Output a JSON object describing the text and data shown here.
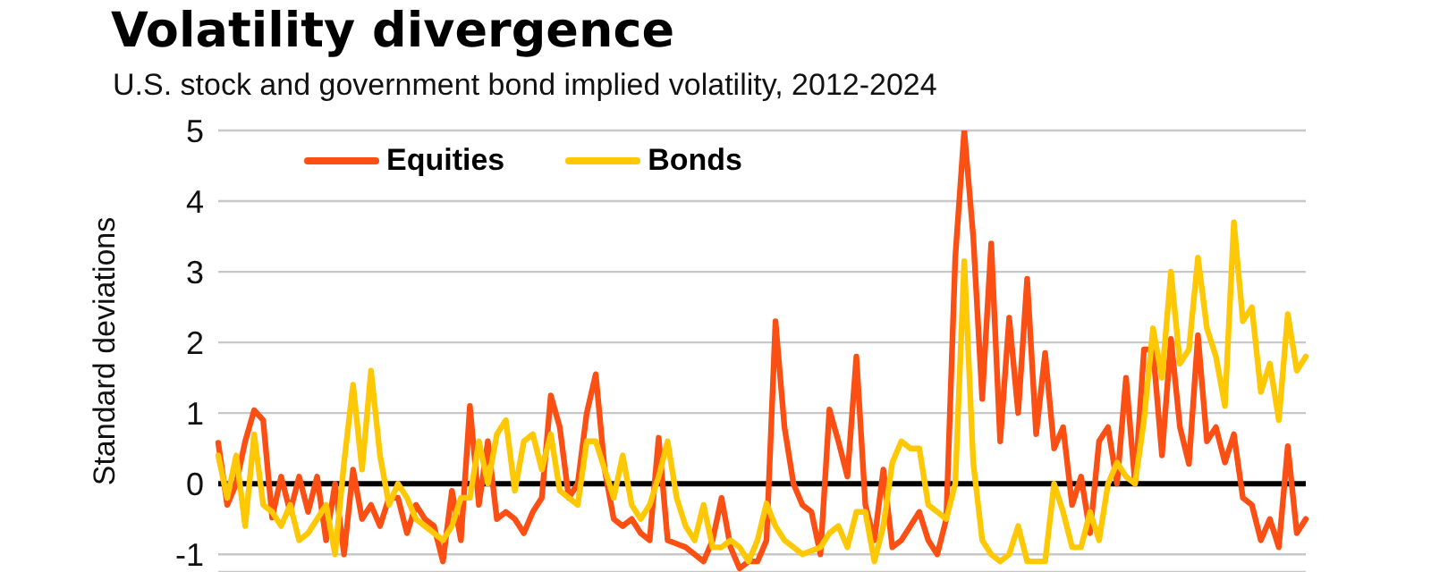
{
  "chart_data": {
    "type": "line",
    "title": "Volatility divergence",
    "subtitle": "U.S. stock and government bond implied volatility, 2012-2024",
    "ylabel": "Standard deviations",
    "categories": [
      null,
      null,
      null,
      null,
      null,
      null,
      null,
      null,
      null,
      null,
      null,
      null,
      null,
      null,
      null,
      null,
      null,
      null,
      null,
      null,
      null,
      null,
      null,
      null,
      null,
      null,
      null,
      null,
      null,
      null,
      null,
      null,
      null,
      null,
      null,
      null,
      null,
      null,
      null,
      null,
      null,
      null,
      null,
      null,
      null,
      null,
      null,
      null,
      null,
      null,
      null,
      null,
      null,
      null,
      null,
      null,
      null,
      null,
      null,
      null,
      null,
      null,
      null,
      null,
      null,
      null,
      null,
      null,
      null,
      null,
      null,
      null,
      null,
      null,
      null,
      null,
      null,
      null,
      null,
      null,
      null,
      null,
      null,
      null,
      null,
      null,
      null,
      null,
      null,
      null,
      null,
      null,
      null,
      null,
      null,
      null,
      null,
      null,
      null,
      null,
      null,
      null,
      null,
      null,
      null,
      null,
      null,
      null,
      null,
      null,
      null,
      null,
      null,
      null,
      null,
      null,
      null,
      null,
      null,
      null,
      null,
      null
    ],
    "series": [
      {
        "name": "Equities",
        "color": "#fb4f14",
        "values": [
          0.58,
          -0.3,
          0,
          0.6,
          1.04,
          0.9,
          -0.48,
          0.1,
          -0.4,
          0.1,
          -0.4,
          0.1,
          -0.8,
          0,
          -1,
          0.2,
          -0.5,
          -0.3,
          -0.6,
          -0.2,
          -0.2,
          -0.7,
          -0.3,
          -0.5,
          -0.6,
          -1.1,
          -0.1,
          -0.8,
          1.1,
          -0.3,
          0.6,
          -0.5,
          -0.4,
          -0.5,
          -0.7,
          -0.4,
          -0.2,
          1.25,
          0.8,
          -0.2,
          0,
          1,
          1.55,
          0.2,
          -0.5,
          -0.6,
          -0.5,
          -0.7,
          -0.8,
          0.65,
          -0.8,
          -0.85,
          -0.9,
          -1,
          -1.1,
          -0.8,
          -0.2,
          -0.9,
          -1.2,
          -1.1,
          -1.1,
          -0.8,
          2.3,
          0.8,
          0,
          -0.3,
          -0.4,
          -1,
          1.05,
          0.6,
          0.1,
          1.8,
          -0.3,
          -0.8,
          0.2,
          -0.9,
          -0.8,
          -0.6,
          -0.4,
          -0.8,
          -1,
          -0.5,
          3.2,
          5,
          3.5,
          1.2,
          3.4,
          0.6,
          2.35,
          1,
          2.9,
          0.7,
          1.85,
          0.5,
          0.8,
          -0.3,
          0.1,
          -0.7,
          0.6,
          0.8,
          0,
          1.5,
          0,
          1.9,
          1.9,
          0.4,
          2.05,
          0.8,
          0.28,
          2.1,
          0.6,
          0.8,
          0.3,
          0.7,
          -0.2,
          -0.3,
          -0.8,
          -0.5,
          -0.9,
          0.53,
          -0.7,
          -0.5
        ]
      },
      {
        "name": "Bonds",
        "color": "#ffc805",
        "values": [
          0.4,
          -0.2,
          0.4,
          -0.6,
          0.7,
          -0.3,
          -0.4,
          -0.6,
          -0.3,
          -0.8,
          -0.7,
          -0.5,
          -0.3,
          -1,
          0.3,
          1.4,
          0.2,
          1.6,
          0.4,
          -0.3,
          0,
          -0.2,
          -0.5,
          -0.6,
          -0.7,
          -0.8,
          -0.6,
          -0.2,
          -0.2,
          0.6,
          0,
          0.7,
          0.9,
          -0.1,
          0.6,
          0.7,
          0.2,
          0.7,
          -0.1,
          -0.2,
          -0.3,
          0.6,
          0.6,
          0.2,
          -0.2,
          0.4,
          -0.3,
          -0.5,
          -0.3,
          0.1,
          0.6,
          -0.2,
          -0.6,
          -0.8,
          -0.3,
          -0.9,
          -0.9,
          -0.8,
          -0.9,
          -1.1,
          -0.8,
          -0.28,
          -0.6,
          -0.8,
          -0.9,
          -1,
          -0.95,
          -0.9,
          -0.7,
          -0.6,
          -0.9,
          -0.4,
          -0.4,
          -1.1,
          -0.6,
          0.3,
          0.6,
          0.5,
          0.5,
          -0.3,
          -0.4,
          -0.5,
          0,
          3.15,
          0.3,
          -0.8,
          -1,
          -1.1,
          -1,
          -0.6,
          -1.1,
          -1.1,
          -1.1,
          0,
          -0.4,
          -0.9,
          -0.9,
          -0.4,
          -0.8,
          0,
          0.3,
          0.1,
          0,
          0.9,
          2.2,
          1.5,
          3,
          1.7,
          1.9,
          3.2,
          2.2,
          1.8,
          1.1,
          3.7,
          2.3,
          2.5,
          1.3,
          1.7,
          0.9,
          2.4,
          1.6,
          1.8
        ]
      }
    ],
    "ylim": [
      -1.25,
      5
    ],
    "yticks": [
      -1,
      0,
      1,
      2,
      3,
      4,
      5
    ],
    "grid": "y",
    "legend": "top",
    "marker": "none",
    "line_style": "solid",
    "tick_labels": "y",
    "ref_lines": [
      {
        "axis": "y",
        "value": 0,
        "color": "#000000"
      }
    ]
  }
}
